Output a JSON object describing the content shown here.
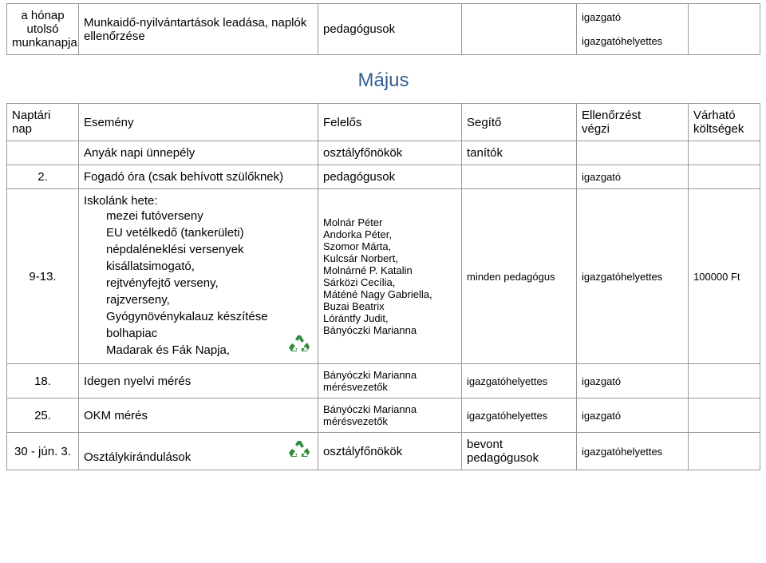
{
  "top_row": {
    "col1_lines": [
      "a hónap",
      "utolsó",
      "munkanapja"
    ],
    "event": "Munkaidő-nyilvántartások leadása, naplók ellenőrzése",
    "felelos": "pedagógusok",
    "segito": "",
    "ellenor_lines": [
      "igazgató",
      "igazgatóhelyettes"
    ],
    "kolts": ""
  },
  "section_title": "Május",
  "header": {
    "c1": "Naptári nap",
    "c2": "Esemény",
    "c3": "Felelős",
    "c4": "Segítő",
    "c5_lines": [
      "Ellenőrzést",
      "végzi"
    ],
    "c6_lines": [
      "Várható",
      "költségek"
    ]
  },
  "rows": [
    {
      "c1": "",
      "event": "Anyák napi ünnepély",
      "felelos": "osztályfőnökök",
      "segito": "tanítók",
      "ellenor": "",
      "kolts": ""
    },
    {
      "c1": "2.",
      "event": "Fogadó óra (csak behívott szülőknek)",
      "felelos": "pedagógusok",
      "segito": "",
      "ellenor": "igazgató",
      "kolts": ""
    }
  ],
  "big_row": {
    "c1": "9-13.",
    "event_title": "Iskolánk hete:",
    "event_items": [
      "mezei futóverseny",
      "EU vetélkedő (tankerületi)",
      "népdaléneklési versenyek",
      "kisállatsimogató,",
      "rejtvényfejtő verseny,",
      "rajzverseny,",
      "Gyógynövénykalauz készítése",
      "bolhapiac",
      "Madarak és Fák Napja,"
    ],
    "felelos_lines": [
      "Molnár Péter",
      "Andorka Péter,",
      "Szomor Márta,",
      "Kulcsár Norbert,",
      "Molnárné P. Katalin",
      "Sárközi Cecília,",
      "Máténé Nagy Gabriella,",
      "Buzai Beatrix",
      "Lórántfy Judit,",
      "Bányóczki Marianna"
    ],
    "segito": "minden pedagógus",
    "ellenor": "igazgatóhelyettes",
    "kolts": "100000 Ft"
  },
  "rows2": [
    {
      "c1": "18.",
      "event": "Idegen nyelvi mérés",
      "felelos_lines": [
        "Bányóczki Marianna",
        "mérésvezetők"
      ],
      "segito": "igazgatóhelyettes",
      "ellenor": "igazgató",
      "kolts": ""
    },
    {
      "c1": "25.",
      "event": "OKM mérés",
      "felelos_lines": [
        "Bányóczki Marianna",
        "mérésvezetők"
      ],
      "segito": "igazgatóhelyettes",
      "ellenor": "igazgató",
      "kolts": ""
    }
  ],
  "last_row": {
    "c1": "30 - jún. 3.",
    "event": "Osztálykirándulások",
    "felelos": "osztályfőnökök",
    "segito": "bevont pedagógusok",
    "ellenor": "igazgatóhelyettes",
    "kolts": ""
  },
  "icon_colors": {
    "outer": "#2e8b3c",
    "arrow": "#ffffff"
  }
}
